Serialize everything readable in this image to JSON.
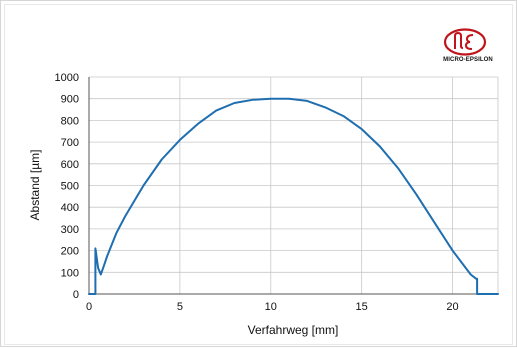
{
  "brand": {
    "name": "MICRO-EPSILON",
    "color": "#c0141b"
  },
  "chart_data": {
    "type": "line",
    "title": "",
    "xlabel": "Verfahrweg [mm]",
    "ylabel": "Abstand [µm]",
    "xlim": [
      0,
      22.5
    ],
    "ylim": [
      0,
      1000
    ],
    "x_ticks": [
      0,
      5,
      10,
      15,
      20
    ],
    "y_ticks": [
      0,
      100,
      200,
      300,
      400,
      500,
      600,
      700,
      800,
      900,
      1000
    ],
    "grid": true,
    "legend": "none",
    "line_color": "#1f6eb0",
    "series": [
      {
        "x": [
          0,
          0.35,
          0.35,
          0.38,
          0.45,
          0.5,
          0.6,
          0.65,
          0.8,
          1.0,
          1.5,
          2,
          3,
          4,
          5,
          6,
          7,
          8,
          9,
          10,
          11,
          12,
          13,
          14,
          15,
          16,
          17,
          18,
          19,
          20,
          21,
          21.3,
          21.35,
          21.35,
          22.5
        ],
        "y": [
          0,
          0,
          210,
          195,
          150,
          120,
          100,
          90,
          125,
          175,
          280,
          360,
          500,
          620,
          710,
          785,
          845,
          880,
          895,
          900,
          900,
          890,
          860,
          820,
          760,
          680,
          580,
          460,
          330,
          200,
          90,
          70,
          70,
          0,
          0
        ]
      }
    ]
  }
}
